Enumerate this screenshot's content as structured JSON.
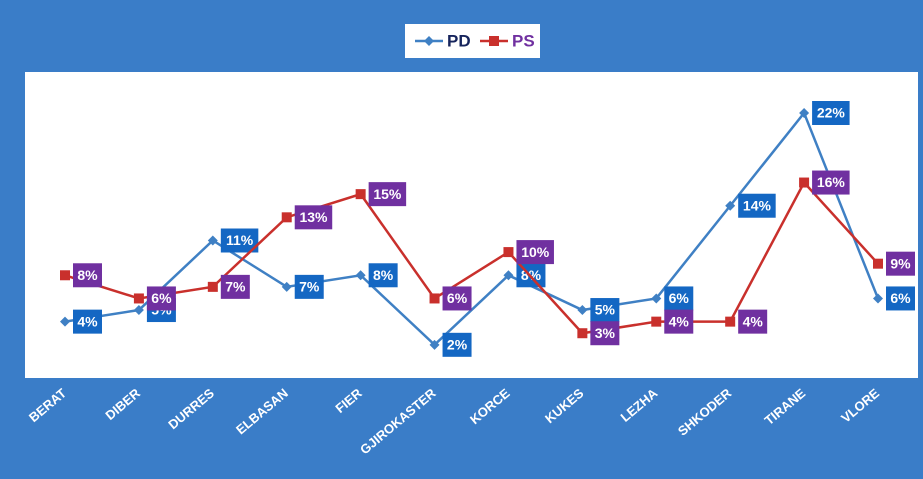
{
  "chart_data": {
    "type": "line",
    "categories": [
      "BERAT",
      "DIBER",
      "DURRES",
      "ELBASAN",
      "FIER",
      "GJIROKASTER",
      "KORCE",
      "KUKES",
      "LEZHA",
      "SHKODER",
      "TIRANE",
      "VLORE"
    ],
    "series": [
      {
        "name": "PD",
        "color": "#3f80c4",
        "label_color": "#1467c3",
        "values": [
          4,
          5,
          11,
          7,
          8,
          2,
          8,
          5,
          6,
          14,
          22,
          6
        ],
        "value_labels": [
          "4%",
          "5%",
          "11%",
          "7%",
          "8%",
          "2%",
          "8%",
          "5%",
          "6%",
          "14%",
          "22%",
          "6%"
        ]
      },
      {
        "name": "PS",
        "color": "#c9302c",
        "label_color": "#7030a0",
        "values": [
          8,
          6,
          7,
          13,
          15,
          6,
          10,
          3,
          4,
          4,
          16,
          9
        ],
        "value_labels": [
          "8%",
          "6%",
          "7%",
          "13%",
          "15%",
          "6%",
          "10%",
          "3%",
          "4%",
          "4%",
          "16%",
          "9%"
        ]
      }
    ],
    "legend": "top"
  }
}
